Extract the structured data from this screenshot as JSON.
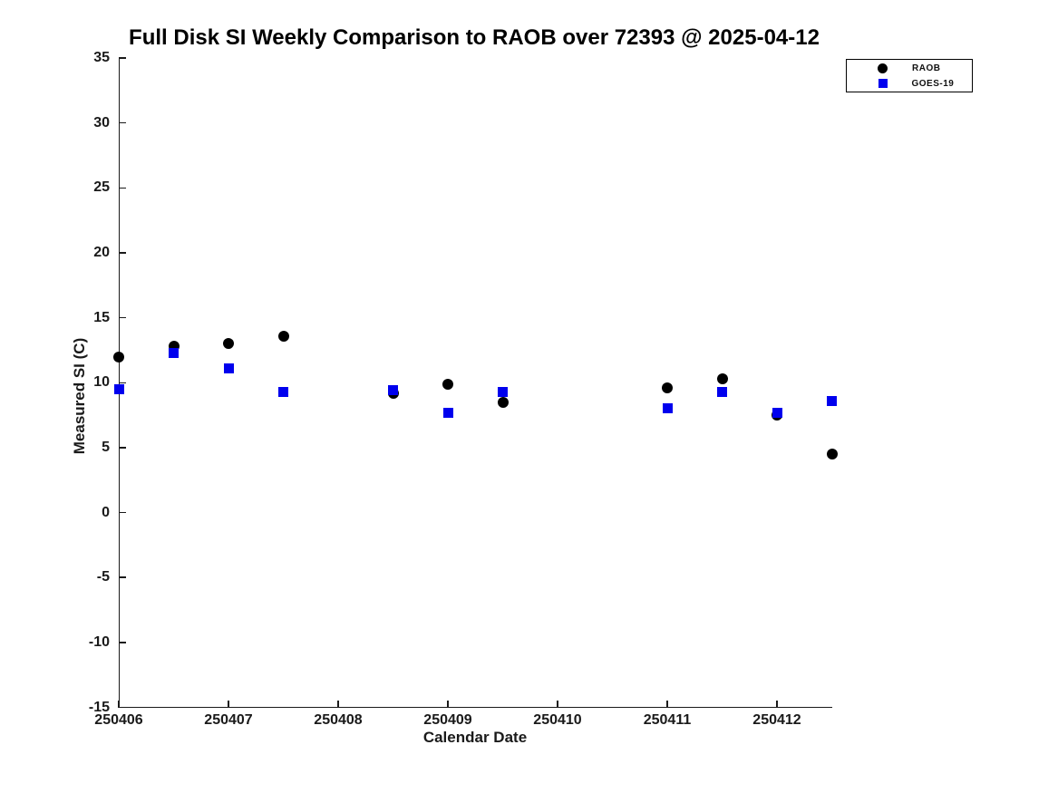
{
  "window": {
    "background": "#ffffff"
  },
  "chart_data": {
    "type": "scatter",
    "title": "Full Disk SI Weekly Comparison to RAOB over 72393 @ 2025-04-12",
    "xlabel": "Calendar Date",
    "ylabel": "Measured SI (C)",
    "xlim": [
      250406,
      250412.5
    ],
    "ylim": [
      -15,
      35
    ],
    "xticks": [
      250406,
      250407,
      250408,
      250409,
      250410,
      250411,
      250412
    ],
    "yticks": [
      35,
      30,
      25,
      20,
      15,
      10,
      5,
      0,
      -5,
      -10,
      -15
    ],
    "grid": false,
    "legend": {
      "position": "top-right",
      "entries": [
        {
          "label": "RAOB",
          "marker": "circle",
          "color": "#000000"
        },
        {
          "label": "GOES-19",
          "marker": "square",
          "color": "#0000EE"
        }
      ]
    },
    "series": [
      {
        "name": "RAOB",
        "marker": "circle",
        "color": "#000000",
        "x": [
          250406,
          250406.5,
          250407,
          250407.5,
          250408.5,
          250409,
          250409.5,
          250411,
          250411.5,
          250412,
          250412.5
        ],
        "y": [
          12.0,
          12.8,
          13.0,
          13.6,
          9.2,
          9.9,
          8.5,
          9.6,
          10.3,
          7.5,
          4.5
        ]
      },
      {
        "name": "GOES-19",
        "marker": "square",
        "color": "#0000EE",
        "x": [
          250406,
          250406.5,
          250407,
          250407.5,
          250408.5,
          250409,
          250409.5,
          250411,
          250411.5,
          250412,
          250412.5
        ],
        "y": [
          9.5,
          12.3,
          11.1,
          9.3,
          9.4,
          7.7,
          9.3,
          8.0,
          9.3,
          7.7,
          8.6
        ]
      }
    ]
  }
}
